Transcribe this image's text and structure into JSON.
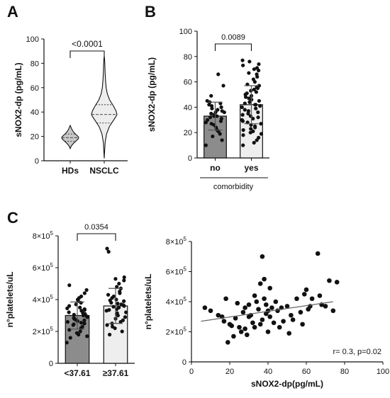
{
  "panels": {
    "A": {
      "letter": "A",
      "chart_data": {
        "type": "violin",
        "ylabel": "sNOX2-dp (pg/mL)",
        "ylim": [
          0,
          100
        ],
        "yticks": [
          0,
          20,
          40,
          60,
          80,
          100
        ],
        "categories": [
          "HDs",
          "NSCLC"
        ],
        "violins": [
          {
            "category": "HDs",
            "min": 10,
            "max": 29,
            "median": 19,
            "q1": 16,
            "q3": 22,
            "profile": [
              [
                10,
                0.0
              ],
              [
                12,
                0.12
              ],
              [
                14,
                0.35
              ],
              [
                16,
                0.65
              ],
              [
                18,
                0.95
              ],
              [
                19,
                1.0
              ],
              [
                20,
                0.92
              ],
              [
                22,
                0.6
              ],
              [
                24,
                0.35
              ],
              [
                26,
                0.18
              ],
              [
                28,
                0.06
              ],
              [
                29,
                0.0
              ]
            ]
          },
          {
            "category": "NSCLC",
            "min": 2,
            "max": 86,
            "median": 38,
            "q1": 31,
            "q3": 46,
            "profile": [
              [
                2,
                0.0
              ],
              [
                8,
                0.03
              ],
              [
                15,
                0.07
              ],
              [
                22,
                0.18
              ],
              [
                28,
                0.4
              ],
              [
                32,
                0.65
              ],
              [
                36,
                0.9
              ],
              [
                38,
                1.0
              ],
              [
                41,
                0.92
              ],
              [
                45,
                0.72
              ],
              [
                50,
                0.42
              ],
              [
                55,
                0.24
              ],
              [
                60,
                0.15
              ],
              [
                66,
                0.1
              ],
              [
                72,
                0.07
              ],
              [
                78,
                0.05
              ],
              [
                83,
                0.03
              ],
              [
                86,
                0.0
              ]
            ]
          }
        ],
        "comparison": {
          "from": "HDs",
          "to": "NSCLC",
          "label": "<0.0001"
        }
      }
    },
    "B": {
      "letter": "B",
      "chart_data": {
        "type": "bar",
        "ylabel": "sNOX2-dp (pg/mL)",
        "xlabel": "comorbidity",
        "ylim": [
          0,
          100
        ],
        "yticks": [
          0,
          20,
          40,
          60,
          80,
          100
        ],
        "categories": [
          "no",
          "yes"
        ],
        "bars": [
          {
            "category": "no",
            "mean": 33,
            "sd": 11,
            "color": "#8c8c8c",
            "points": [
              66,
              57,
              49,
              45,
              44,
              43,
              42,
              41,
              40,
              39,
              38,
              37,
              36,
              36,
              35,
              34,
              33,
              33,
              32,
              31,
              30,
              29,
              28,
              27,
              26,
              24,
              22,
              21,
              19,
              17,
              14,
              10
            ]
          },
          {
            "category": "yes",
            "mean": 42,
            "sd": 15,
            "color": "#eeeeee",
            "points": [
              77,
              76,
              74,
              73,
              71,
              70,
              69,
              67,
              66,
              64,
              62,
              60,
              58,
              57,
              56,
              55,
              54,
              53,
              52,
              51,
              50,
              49,
              48,
              47,
              46,
              45,
              44,
              43,
              42,
              42,
              41,
              40,
              39,
              38,
              37,
              36,
              35,
              34,
              33,
              32,
              31,
              30,
              29,
              28,
              27,
              26,
              25,
              24,
              23,
              22,
              21,
              20,
              19,
              18,
              16,
              14,
              12,
              10
            ]
          }
        ],
        "comparison": {
          "from": "no",
          "to": "yes",
          "label": "0.0089"
        }
      }
    },
    "C": {
      "letter": "C",
      "bar_chart_data": {
        "type": "bar",
        "ylabel": "n°platelets/uL",
        "ylim": [
          0,
          800000
        ],
        "yticks": [
          {
            "value": 0,
            "label": "0"
          },
          {
            "value": 200000,
            "mant": "2×10",
            "exp": "5"
          },
          {
            "value": 400000,
            "mant": "4×10",
            "exp": "5"
          },
          {
            "value": 600000,
            "mant": "6×10",
            "exp": "5"
          },
          {
            "value": 800000,
            "mant": "8×10",
            "exp": "5"
          }
        ],
        "categories": [
          "<37.61",
          "≥37.61"
        ],
        "bars": [
          {
            "category": "<37.61",
            "mean": 300000,
            "sd": 85000,
            "color": "#8c8c8c",
            "points": [
              490000,
              460000,
              440000,
              420000,
              410000,
              400000,
              390000,
              380000,
              370000,
              360000,
              350000,
              345000,
              340000,
              335000,
              330000,
              320000,
              315000,
              310000,
              305000,
              300000,
              295000,
              290000,
              285000,
              280000,
              275000,
              270000,
              265000,
              260000,
              255000,
              250000,
              245000,
              240000,
              230000,
              220000,
              210000,
              200000,
              190000,
              180000,
              170000,
              160000,
              130000
            ]
          },
          {
            "category": "≥37.61",
            "mean": 360000,
            "sd": 110000,
            "color": "#eeeeee",
            "points": [
              720000,
              700000,
              540000,
              530000,
              520000,
              500000,
              480000,
              470000,
              450000,
              440000,
              430000,
              420000,
              410000,
              400000,
              395000,
              390000,
              380000,
              375000,
              370000,
              365000,
              360000,
              355000,
              350000,
              340000,
              335000,
              330000,
              320000,
              315000,
              310000,
              300000,
              290000,
              280000,
              270000,
              260000,
              250000,
              240000,
              230000,
              220000,
              200000,
              180000
            ]
          }
        ],
        "comparison": {
          "from": "<37.61",
          "to": "≥37.61",
          "label": "0.0354"
        }
      },
      "scatter_chart_data": {
        "type": "scatter",
        "xlabel": "sNOX2-dp(pg/mL)",
        "ylabel": "n°platelets/uL",
        "xlim": [
          0,
          100
        ],
        "ylim": [
          0,
          800000
        ],
        "xticks": [
          0,
          20,
          40,
          60,
          80,
          100
        ],
        "yticks": [
          {
            "value": 0,
            "label": "0"
          },
          {
            "value": 200000,
            "mant": "2×10",
            "exp": "5"
          },
          {
            "value": 400000,
            "mant": "4×10",
            "exp": "5"
          },
          {
            "value": 600000,
            "mant": "6×10",
            "exp": "5"
          },
          {
            "value": 800000,
            "mant": "8×10",
            "exp": "5"
          }
        ],
        "points": [
          [
            7,
            360000
          ],
          [
            10,
            340000
          ],
          [
            14,
            310000
          ],
          [
            16,
            300000
          ],
          [
            17,
            270000
          ],
          [
            18,
            420000
          ],
          [
            19,
            130000
          ],
          [
            20,
            250000
          ],
          [
            21,
            240000
          ],
          [
            22,
            170000
          ],
          [
            23,
            290000
          ],
          [
            24,
            390000
          ],
          [
            25,
            230000
          ],
          [
            26,
            200000
          ],
          [
            27,
            330000
          ],
          [
            28,
            220000
          ],
          [
            28,
            360000
          ],
          [
            29,
            180000
          ],
          [
            30,
            300000
          ],
          [
            30,
            380000
          ],
          [
            31,
            310000
          ],
          [
            32,
            260000
          ],
          [
            33,
            230000
          ],
          [
            33,
            440000
          ],
          [
            34,
            400000
          ],
          [
            35,
            350000
          ],
          [
            36,
            520000
          ],
          [
            36,
            250000
          ],
          [
            37,
            280000
          ],
          [
            37,
            700000
          ],
          [
            38,
            550000
          ],
          [
            38,
            420000
          ],
          [
            39,
            380000
          ],
          [
            39,
            320000
          ],
          [
            40,
            340000
          ],
          [
            40,
            200000
          ],
          [
            41,
            490000
          ],
          [
            41,
            300000
          ],
          [
            42,
            360000
          ],
          [
            43,
            260000
          ],
          [
            44,
            400000
          ],
          [
            45,
            340000
          ],
          [
            46,
            230000
          ],
          [
            47,
            360000
          ],
          [
            48,
            270000
          ],
          [
            50,
            370000
          ],
          [
            51,
            190000
          ],
          [
            52,
            310000
          ],
          [
            53,
            280000
          ],
          [
            55,
            420000
          ],
          [
            57,
            330000
          ],
          [
            58,
            250000
          ],
          [
            59,
            450000
          ],
          [
            60,
            480000
          ],
          [
            61,
            350000
          ],
          [
            62,
            370000
          ],
          [
            63,
            420000
          ],
          [
            66,
            720000
          ],
          [
            67,
            440000
          ],
          [
            68,
            380000
          ],
          [
            70,
            370000
          ],
          [
            72,
            540000
          ],
          [
            74,
            340000
          ],
          [
            76,
            530000
          ]
        ],
        "regression": {
          "x": [
            5,
            74
          ],
          "y": [
            270000,
            400000
          ]
        },
        "annotation": "r= 0.3, p=0.02"
      }
    }
  }
}
